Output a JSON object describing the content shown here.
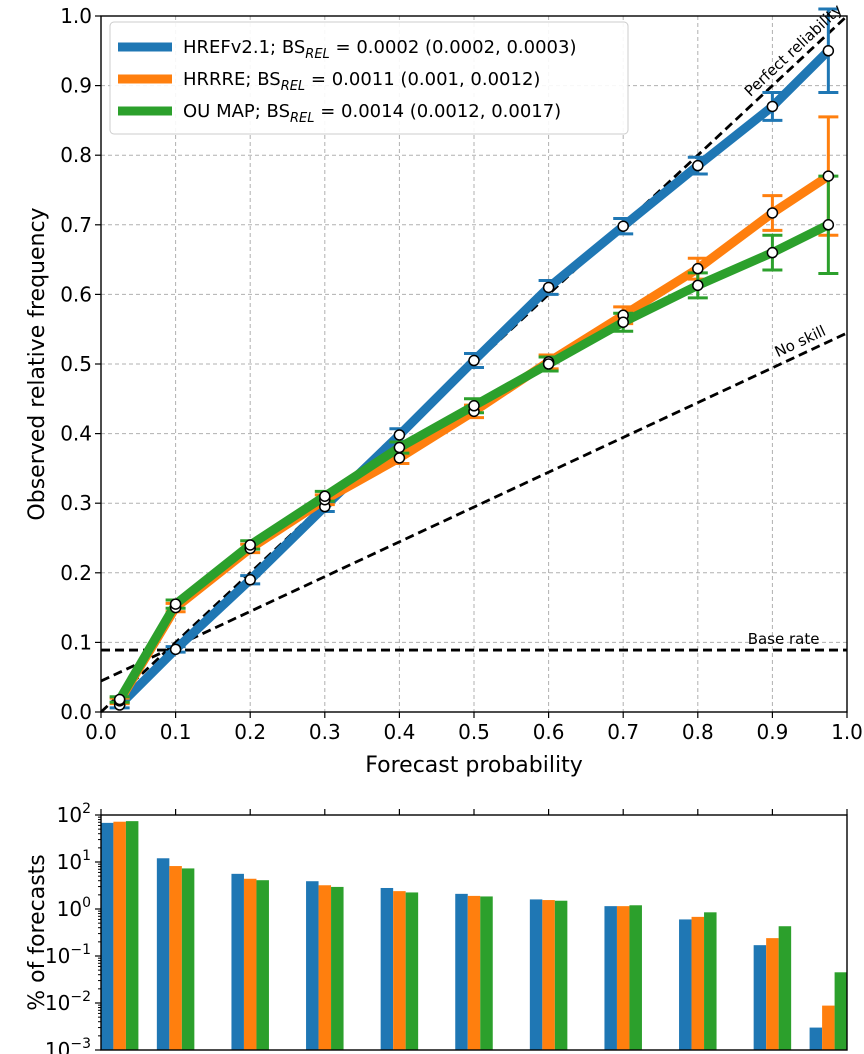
{
  "chart_data": [
    {
      "type": "line",
      "xlabel": "Forecast probability",
      "ylabel": "Observed relative frequency",
      "xlim": [
        0,
        1
      ],
      "ylim": [
        0,
        1
      ],
      "xticks": [
        "0.0",
        "0.1",
        "0.2",
        "0.3",
        "0.4",
        "0.5",
        "0.6",
        "0.7",
        "0.8",
        "0.9",
        "1.0"
      ],
      "yticks": [
        "0.0",
        "0.1",
        "0.2",
        "0.3",
        "0.4",
        "0.5",
        "0.6",
        "0.7",
        "0.8",
        "0.9",
        "1.0"
      ],
      "grid": true,
      "legend_position": "upper-left",
      "x": [
        0.025,
        0.1,
        0.2,
        0.3,
        0.4,
        0.5,
        0.6,
        0.7,
        0.8,
        0.9,
        0.975
      ],
      "series": [
        {
          "legend_main": "HREFv2.1; BS",
          "legend_sub": "REL",
          "legend_tail": " = 0.0002 (0.0002, 0.0003)",
          "color": "#1f77b4",
          "values": [
            0.01,
            0.09,
            0.19,
            0.295,
            0.398,
            0.505,
            0.61,
            0.698,
            0.785,
            0.87,
            0.95
          ],
          "err": [
            0.004,
            0.004,
            0.006,
            0.007,
            0.009,
            0.01,
            0.01,
            0.011,
            0.012,
            0.02,
            0.06
          ]
        },
        {
          "legend_main": "HRRRE; BS",
          "legend_sub": "REL",
          "legend_tail": " = 0.0011 (0.001, 0.0012)",
          "color": "#ff7f0e",
          "values": [
            0.016,
            0.15,
            0.235,
            0.305,
            0.365,
            0.432,
            0.503,
            0.57,
            0.637,
            0.717,
            0.77
          ],
          "err": [
            0.004,
            0.006,
            0.006,
            0.007,
            0.008,
            0.009,
            0.01,
            0.012,
            0.015,
            0.025,
            0.085
          ]
        },
        {
          "legend_main": "OU MAP; BS",
          "legend_sub": "REL",
          "legend_tail": " = 0.0014 (0.0012, 0.0017)",
          "color": "#2ca02c",
          "values": [
            0.018,
            0.155,
            0.24,
            0.31,
            0.38,
            0.44,
            0.5,
            0.56,
            0.613,
            0.66,
            0.7
          ],
          "err": [
            0.004,
            0.006,
            0.006,
            0.007,
            0.008,
            0.01,
            0.01,
            0.013,
            0.018,
            0.025,
            0.07
          ]
        }
      ],
      "reference_lines": {
        "perfect_label": "Perfect reliability",
        "no_skill_label": "No skill",
        "base_rate_label": "Base rate",
        "base_rate": 0.089
      }
    },
    {
      "type": "bar",
      "ylabel": "% of forecasts",
      "yscale": "log",
      "ylim": [
        0.001,
        100
      ],
      "ytick_base": "10",
      "ytick_exponents": [
        "2",
        "1",
        "0",
        "−1",
        "−2",
        "−3"
      ],
      "categories": [
        0.025,
        0.1,
        0.2,
        0.3,
        0.4,
        0.5,
        0.6,
        0.7,
        0.8,
        0.9,
        0.975
      ],
      "series": [
        {
          "color": "#1f77b4",
          "values": [
            68,
            12,
            5.6,
            3.9,
            2.8,
            2.1,
            1.6,
            1.15,
            0.6,
            0.17,
            0.003
          ]
        },
        {
          "color": "#ff7f0e",
          "values": [
            72,
            8.2,
            4.4,
            3.2,
            2.4,
            1.9,
            1.55,
            1.15,
            0.68,
            0.24,
            0.0088
          ]
        },
        {
          "color": "#2ca02c",
          "values": [
            74,
            7.3,
            4.1,
            2.95,
            2.25,
            1.85,
            1.5,
            1.2,
            0.85,
            0.43,
            0.045
          ]
        }
      ]
    }
  ]
}
